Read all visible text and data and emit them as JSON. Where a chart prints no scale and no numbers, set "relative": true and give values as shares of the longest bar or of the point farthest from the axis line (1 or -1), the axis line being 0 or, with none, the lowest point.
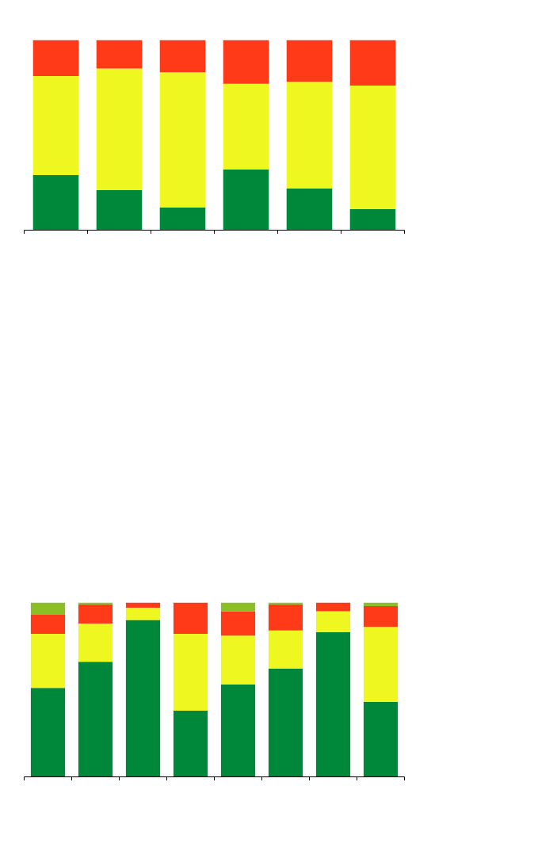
{
  "chart_data": [
    {
      "type": "bar",
      "stacked": true,
      "relative": true,
      "categories": [
        null,
        null,
        null,
        null,
        null,
        null
      ],
      "series": [
        {
          "color": "#00883a",
          "values": [
            0.29,
            0.21,
            0.12,
            0.32,
            0.22,
            0.11
          ]
        },
        {
          "color": "#eef71f",
          "values": [
            0.52,
            0.64,
            0.71,
            0.45,
            0.56,
            0.65
          ]
        },
        {
          "color": "#ff3a19",
          "values": [
            0.19,
            0.15,
            0.17,
            0.23,
            0.22,
            0.24
          ]
        }
      ]
    },
    {
      "type": "bar",
      "stacked": true,
      "relative": true,
      "categories": [
        null,
        null,
        null,
        null,
        null,
        null,
        null,
        null
      ],
      "series": [
        {
          "color": "#00883a",
          "values": [
            0.51,
            0.66,
            0.9,
            0.38,
            0.53,
            0.62,
            0.83,
            0.43
          ]
        },
        {
          "color": "#eef71f",
          "values": [
            0.31,
            0.22,
            0.07,
            0.44,
            0.28,
            0.22,
            0.12,
            0.43
          ]
        },
        {
          "color": "#ff3a19",
          "values": [
            0.11,
            0.11,
            0.03,
            0.18,
            0.14,
            0.15,
            0.05,
            0.12
          ]
        },
        {
          "color": "#8cbf26",
          "values": [
            0.07,
            0.01,
            null,
            null,
            0.05,
            0.01,
            null,
            0.02
          ]
        }
      ]
    }
  ]
}
